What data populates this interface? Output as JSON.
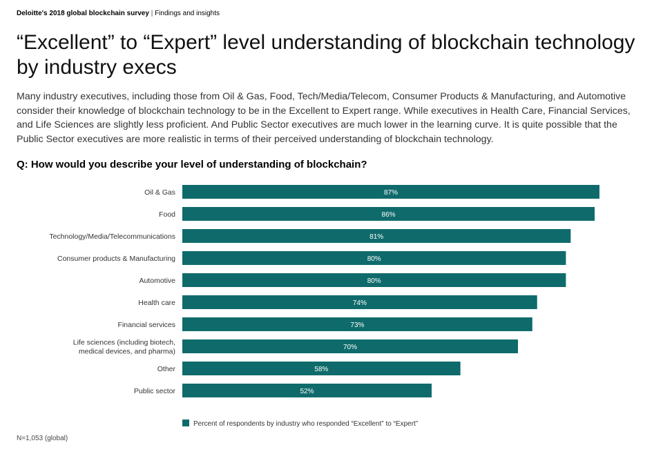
{
  "header": {
    "survey": "Deloitte's 2018 global blockchain survey",
    "separator": "|",
    "section": "Findings and insights"
  },
  "title": "“Excellent” to “Expert” level understanding of blockchain technology by industry execs",
  "intro": "Many industry executives, including those from Oil & Gas, Food, Tech/Media/Telecom, Consumer Products & Manufacturing, and Automotive consider their knowledge of blockchain technology to be in the Excellent to Expert range. While executives in Health Care, Financial Services, and Life Sciences are slightly less proficient. And Public Sector executives are much lower in the learning curve. It is quite possible that the Public Sector executives are more realistic in terms of their perceived understanding of blockchain technology.",
  "question": "Q: How would you describe your level of understanding of blockchain?",
  "footnote": "N=1,053 (global)",
  "chart_data": {
    "type": "bar",
    "orientation": "horizontal",
    "categories": [
      [
        "Oil & Gas"
      ],
      [
        "Food"
      ],
      [
        "Technology/Media/Telecommunications"
      ],
      [
        "Consumer products & Manufacturing"
      ],
      [
        "Automotive"
      ],
      [
        "Health care"
      ],
      [
        "Financial services"
      ],
      [
        "Life sciences (including biotech,",
        "medical devices, and pharma)"
      ],
      [
        "Other"
      ],
      [
        "Public sector"
      ]
    ],
    "values": [
      87,
      86,
      81,
      80,
      80,
      74,
      73,
      70,
      58,
      52
    ],
    "value_labels": [
      "87%",
      "86%",
      "81%",
      "80%",
      "80%",
      "74%",
      "73%",
      "70%",
      "58%",
      "52%"
    ],
    "legend": "Percent of respondents by industry who responded “Excellent” to “Expert”",
    "legend_position": "bottom-left",
    "bar_color": "#0f6b6b",
    "label_color": "#ffffff",
    "grid": false
  }
}
